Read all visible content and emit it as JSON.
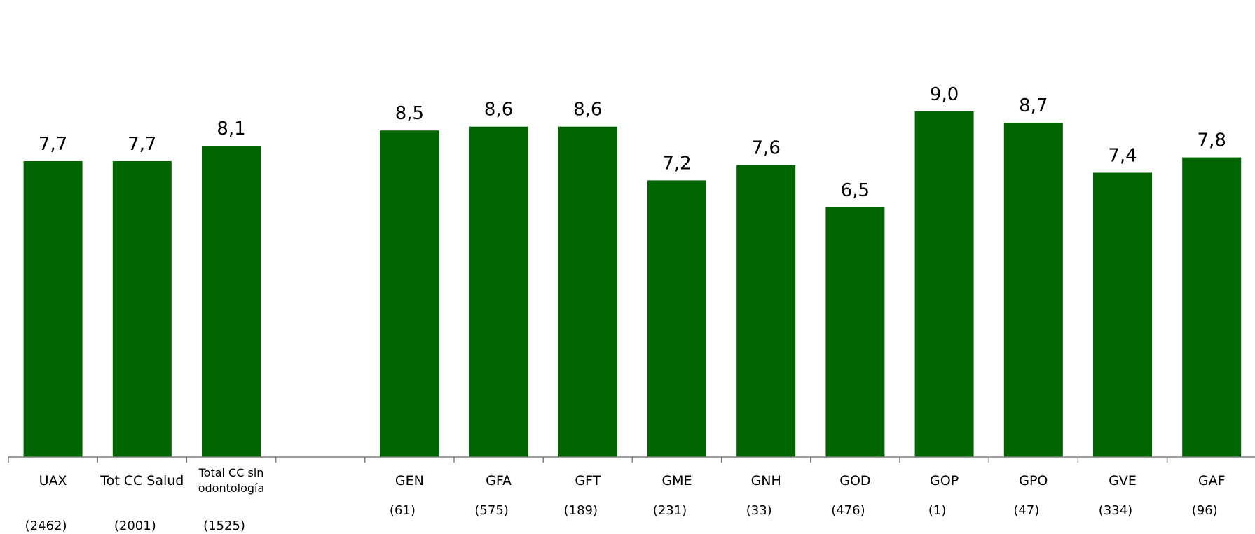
{
  "chart_data": {
    "type": "bar",
    "title": "",
    "xlabel": "",
    "ylabel": "",
    "ylim": [
      0,
      10
    ],
    "grid": false,
    "legend": "none",
    "bar_color": "#006400",
    "categories": [
      {
        "label": [
          "UAX"
        ],
        "value": 7.7,
        "value_label": "7,7",
        "count": "(2462)"
      },
      {
        "label": [
          "Tot CC Salud"
        ],
        "value": 7.7,
        "value_label": "7,7",
        "count": "(2001)"
      },
      {
        "label": [
          "Total CC sin",
          "odontología"
        ],
        "value": 8.1,
        "value_label": "8,1",
        "count": "(1525)"
      },
      {
        "label": [
          ""
        ],
        "value": null,
        "value_label": "",
        "count": ""
      },
      {
        "label": [
          "GEN"
        ],
        "value": 8.5,
        "value_label": "8,5",
        "count": "(61)"
      },
      {
        "label": [
          "GFA"
        ],
        "value": 8.6,
        "value_label": "8,6",
        "count": "(575)"
      },
      {
        "label": [
          "GFT"
        ],
        "value": 8.6,
        "value_label": "8,6",
        "count": "(189)"
      },
      {
        "label": [
          "GME"
        ],
        "value": 7.2,
        "value_label": "7,2",
        "count": "(231)"
      },
      {
        "label": [
          "GNH"
        ],
        "value": 7.6,
        "value_label": "7,6",
        "count": "(33)"
      },
      {
        "label": [
          "GOD"
        ],
        "value": 6.5,
        "value_label": "6,5",
        "count": "(476)"
      },
      {
        "label": [
          "GOP"
        ],
        "value": 9.0,
        "value_label": "9,0",
        "count": "(1)"
      },
      {
        "label": [
          "GPO"
        ],
        "value": 8.7,
        "value_label": "8,7",
        "count": "(47)"
      },
      {
        "label": [
          "GVE"
        ],
        "value": 7.4,
        "value_label": "7,4",
        "count": "(334)"
      },
      {
        "label": [
          "GAF"
        ],
        "value": 7.8,
        "value_label": "7,8",
        "count": "(96)"
      }
    ]
  }
}
